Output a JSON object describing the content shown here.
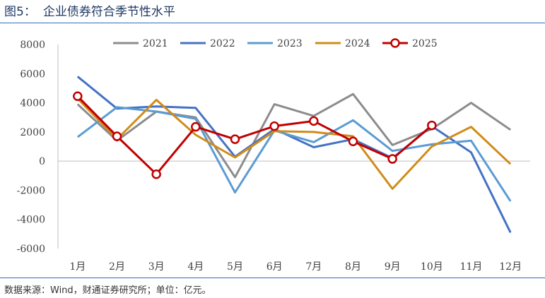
{
  "figure": {
    "number": "图5：",
    "title": "企业债券符合季节性水平",
    "source": "数据来源：Wind，财通证券研究所；单位：亿元。"
  },
  "colors": {
    "rule": "#2f6db5",
    "title": "#1f3864"
  },
  "chart_data": {
    "type": "line",
    "title": "",
    "xlabel": "",
    "ylabel": "",
    "categories": [
      "1月",
      "2月",
      "3月",
      "4月",
      "5月",
      "6月",
      "7月",
      "8月",
      "9月",
      "10月",
      "11月",
      "12月"
    ],
    "ylim": [
      -6000,
      8000
    ],
    "yticks": [
      -6000,
      -4000,
      -2000,
      0,
      2000,
      4000,
      6000,
      8000
    ],
    "grid": false,
    "legend_position": "top",
    "series": [
      {
        "name": "2021",
        "color": "#8c8c8c",
        "marker": "none",
        "values": [
          3900,
          1400,
          3400,
          3000,
          -1100,
          3900,
          3100,
          4600,
          1100,
          2200,
          4000,
          2150
        ]
      },
      {
        "name": "2022",
        "color": "#4472c4",
        "marker": "none",
        "values": [
          5800,
          3600,
          3750,
          3650,
          300,
          2200,
          950,
          1500,
          200,
          2400,
          600,
          -4900
        ]
      },
      {
        "name": "2023",
        "color": "#5b9bd5",
        "marker": "none",
        "values": [
          1650,
          3700,
          3400,
          2900,
          -2150,
          2100,
          1300,
          2800,
          700,
          1150,
          1400,
          -2750
        ]
      },
      {
        "name": "2024",
        "color": "#d08c1a",
        "marker": "none",
        "values": [
          4300,
          1500,
          4200,
          1800,
          250,
          2050,
          2000,
          1700,
          -1900,
          1000,
          2350,
          -200
        ]
      },
      {
        "name": "2025",
        "color": "#c00000",
        "marker": "circle",
        "values": [
          4450,
          1700,
          -900,
          2350,
          1500,
          2400,
          2750,
          1350,
          150,
          2450,
          null,
          null
        ]
      }
    ]
  }
}
